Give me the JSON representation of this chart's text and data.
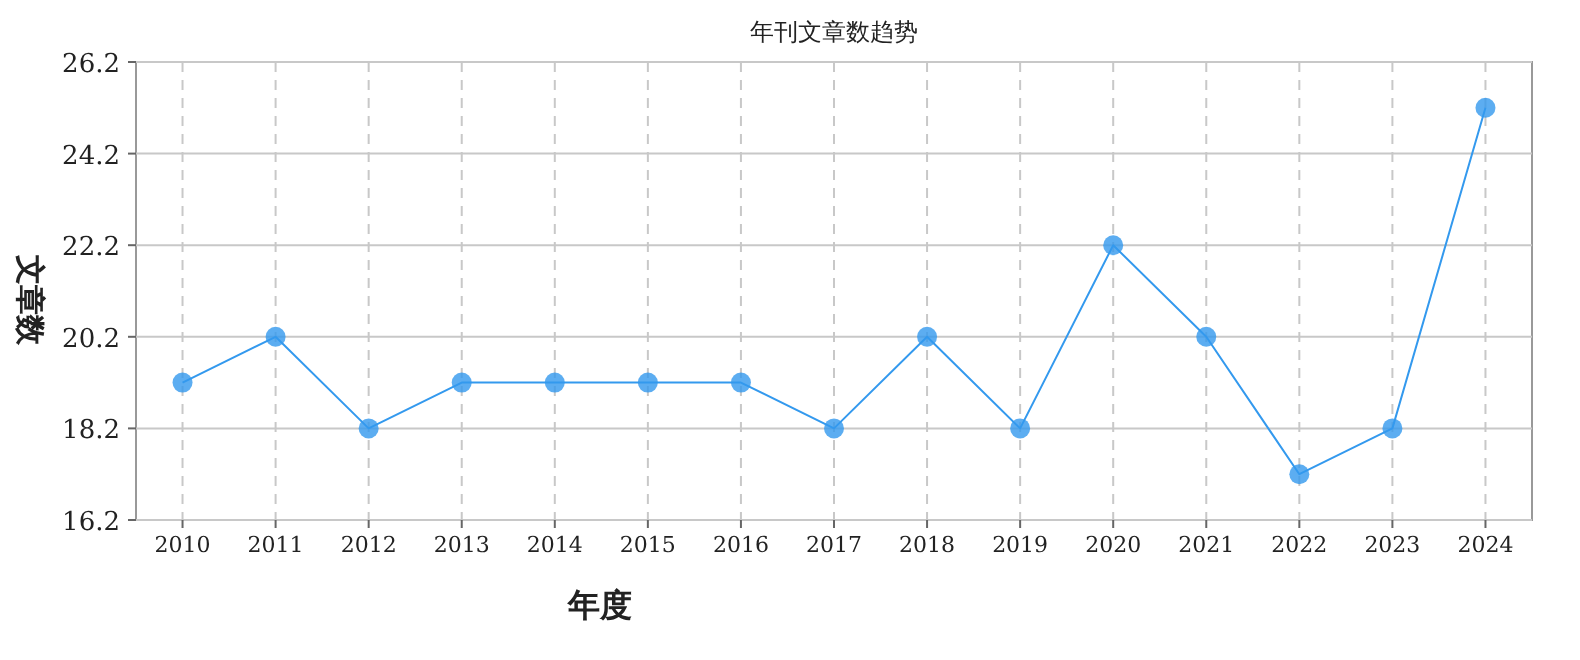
{
  "chart_data": {
    "type": "line",
    "title": "年刊文章数趋势",
    "xlabel": "年度",
    "ylabel": "文章数",
    "categories": [
      "2010",
      "2011",
      "2012",
      "2013",
      "2014",
      "2015",
      "2016",
      "2017",
      "2018",
      "2019",
      "2020",
      "2021",
      "2022",
      "2023",
      "2024"
    ],
    "series": [
      {
        "color": "#3399ee",
        "values": [
          19.2,
          20.2,
          18.2,
          19.2,
          19.2,
          19.2,
          19.2,
          18.2,
          20.2,
          18.2,
          22.2,
          20.2,
          17.2,
          18.2,
          25.2
        ]
      }
    ],
    "ylim": [
      16.2,
      26.2
    ],
    "yticks": [
      16.2,
      18.2,
      20.2,
      22.2,
      24.2,
      26.2
    ],
    "grid": true,
    "marker": "circle",
    "line_style": "solid"
  }
}
